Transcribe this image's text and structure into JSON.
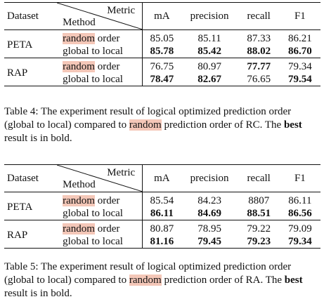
{
  "table4": {
    "header": {
      "dataset": "Dataset",
      "metric": "Metric",
      "method": "Method",
      "cols": [
        "mA",
        "precision",
        "recall",
        "F1"
      ]
    },
    "groups": [
      {
        "dataset": "PETA",
        "rows": [
          {
            "method_hl": "random",
            "method_rest": " order",
            "values": [
              "85.05",
              "85.11",
              "87.33",
              "86.21"
            ],
            "bold": [
              false,
              false,
              false,
              false
            ]
          },
          {
            "method_hl": "",
            "method_rest": "global to local",
            "values": [
              "85.78",
              "85.42",
              "88.02",
              "86.70"
            ],
            "bold": [
              true,
              true,
              true,
              true
            ]
          }
        ]
      },
      {
        "dataset": "RAP",
        "rows": [
          {
            "method_hl": "random",
            "method_rest": " order",
            "values": [
              "76.75",
              "80.97",
              "77.77",
              "79.34"
            ],
            "bold": [
              false,
              false,
              true,
              false
            ]
          },
          {
            "method_hl": "",
            "method_rest": "global to local",
            "values": [
              "78.47",
              "82.67",
              "76.65",
              "79.54"
            ],
            "bold": [
              true,
              true,
              false,
              true
            ]
          }
        ]
      }
    ],
    "caption": {
      "part1": "Table 4: The experiment result of logical optimized prediction order (global to local) compared to ",
      "hl": "random",
      "part2": " prediction order of RC. The ",
      "bold": "best",
      "part3": " result is in bold."
    }
  },
  "table5": {
    "header": {
      "dataset": "Dataset",
      "metric": "Metric",
      "method": "Method",
      "cols": [
        "mA",
        "precision",
        "recall",
        "F1"
      ]
    },
    "groups": [
      {
        "dataset": "PETA",
        "rows": [
          {
            "method_hl": "random",
            "method_rest": " order",
            "values": [
              "85.54",
              "84.23",
              "8807",
              "86.11"
            ],
            "bold": [
              false,
              false,
              false,
              false
            ]
          },
          {
            "method_hl": "",
            "method_rest": "global to local",
            "values": [
              "86.11",
              "84.69",
              "88.51",
              "86.56"
            ],
            "bold": [
              true,
              true,
              true,
              true
            ]
          }
        ]
      },
      {
        "dataset": "RAP",
        "rows": [
          {
            "method_hl": "random",
            "method_rest": " order",
            "values": [
              "80.87",
              "78.95",
              "79.22",
              "79.09"
            ],
            "bold": [
              false,
              false,
              false,
              false
            ]
          },
          {
            "method_hl": "",
            "method_rest": "global to local",
            "values": [
              "81.16",
              "79.45",
              "79.23",
              "79.34"
            ],
            "bold": [
              true,
              true,
              true,
              true
            ]
          }
        ]
      }
    ],
    "caption": {
      "part1": "Table 5: The experiment result of logical optimized prediction order (global to local) compared to ",
      "hl": "random",
      "part2": " prediction order of RA. The ",
      "bold": "best",
      "part3": " result is in bold."
    }
  },
  "colors": {
    "highlight": "#f4c7b8",
    "text": "#111111",
    "rule": "#111111"
  }
}
